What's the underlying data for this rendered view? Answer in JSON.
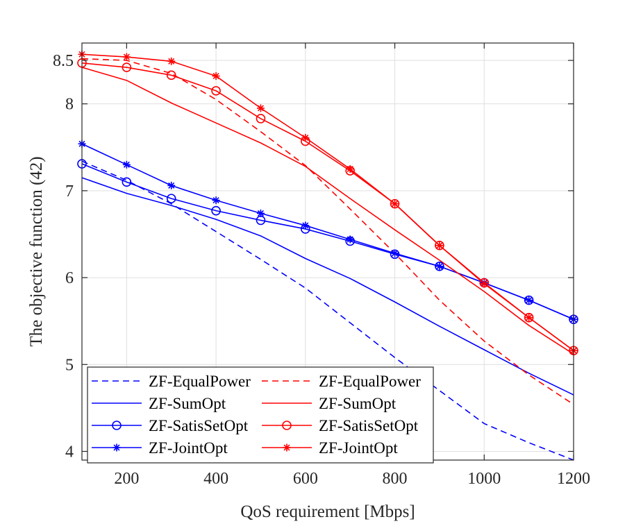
{
  "chart_data": {
    "type": "line",
    "title": "",
    "xlabel": "QoS requirement [Mbps]",
    "ylabel": "The objective function (42)",
    "xlim": [
      100,
      1200
    ],
    "ylim": [
      3.9,
      8.7
    ],
    "xticks": [
      200,
      400,
      600,
      800,
      1000,
      1200
    ],
    "yticks": [
      4,
      5,
      6,
      7,
      8,
      8.5
    ],
    "ytick_labels": [
      "4",
      "5",
      "6",
      "7",
      "8",
      "8.5"
    ],
    "grid": true,
    "legend_position": "bottom-left",
    "x": [
      100,
      200,
      300,
      400,
      500,
      600,
      700,
      800,
      900,
      1000,
      1100,
      1200
    ],
    "series": [
      {
        "name": "ZF-EqualPower",
        "color": "#0000ff",
        "dash": "dashed",
        "marker": "none",
        "values": [
          7.34,
          7.12,
          6.85,
          6.53,
          6.21,
          5.88,
          5.48,
          5.08,
          4.7,
          4.32,
          4.1,
          3.9
        ]
      },
      {
        "name": "ZF-SumOpt",
        "color": "#0000ff",
        "dash": "solid",
        "marker": "none",
        "values": [
          7.15,
          6.97,
          6.83,
          6.67,
          6.48,
          6.22,
          5.99,
          5.72,
          5.44,
          5.17,
          4.9,
          4.65
        ]
      },
      {
        "name": "ZF-SatisSetOpt",
        "color": "#0000ff",
        "dash": "solid",
        "marker": "circle",
        "values": [
          7.31,
          7.1,
          6.91,
          6.77,
          6.66,
          6.56,
          6.42,
          6.27,
          6.13,
          5.94,
          5.74,
          5.52
        ]
      },
      {
        "name": "ZF-JointOpt",
        "color": "#0000ff",
        "dash": "solid",
        "marker": "star",
        "values": [
          7.54,
          7.3,
          7.06,
          6.89,
          6.74,
          6.6,
          6.44,
          6.28,
          6.13,
          5.94,
          5.74,
          5.52
        ]
      },
      {
        "name": "ZF-EqualPower",
        "color": "#ff0000",
        "dash": "dashed",
        "marker": "none",
        "values": [
          8.52,
          8.5,
          8.35,
          8.05,
          7.68,
          7.29,
          6.79,
          6.28,
          5.74,
          5.27,
          4.88,
          4.54
        ]
      },
      {
        "name": "ZF-SumOpt",
        "color": "#ff0000",
        "dash": "solid",
        "marker": "none",
        "values": [
          8.42,
          8.27,
          8.01,
          7.78,
          7.55,
          7.28,
          6.91,
          6.55,
          6.2,
          5.84,
          5.45,
          5.12
        ]
      },
      {
        "name": "ZF-SatisSetOpt",
        "color": "#ff0000",
        "dash": "solid",
        "marker": "circle",
        "values": [
          8.47,
          8.42,
          8.33,
          8.15,
          7.83,
          7.57,
          7.23,
          6.85,
          6.37,
          5.94,
          5.54,
          5.16
        ]
      },
      {
        "name": "ZF-JointOpt",
        "color": "#ff0000",
        "dash": "solid",
        "marker": "star",
        "values": [
          8.57,
          8.54,
          8.49,
          8.32,
          7.95,
          7.61,
          7.25,
          6.85,
          6.37,
          5.93,
          5.54,
          5.16
        ]
      }
    ],
    "legend_entries": [
      "ZF-EqualPower",
      "ZF-EqualPower",
      "ZF-SumOpt",
      "ZF-SumOpt",
      "ZF-SatisSetOpt",
      "ZF-SatisSetOpt",
      "ZF-JointOpt",
      "ZF-JointOpt"
    ]
  }
}
